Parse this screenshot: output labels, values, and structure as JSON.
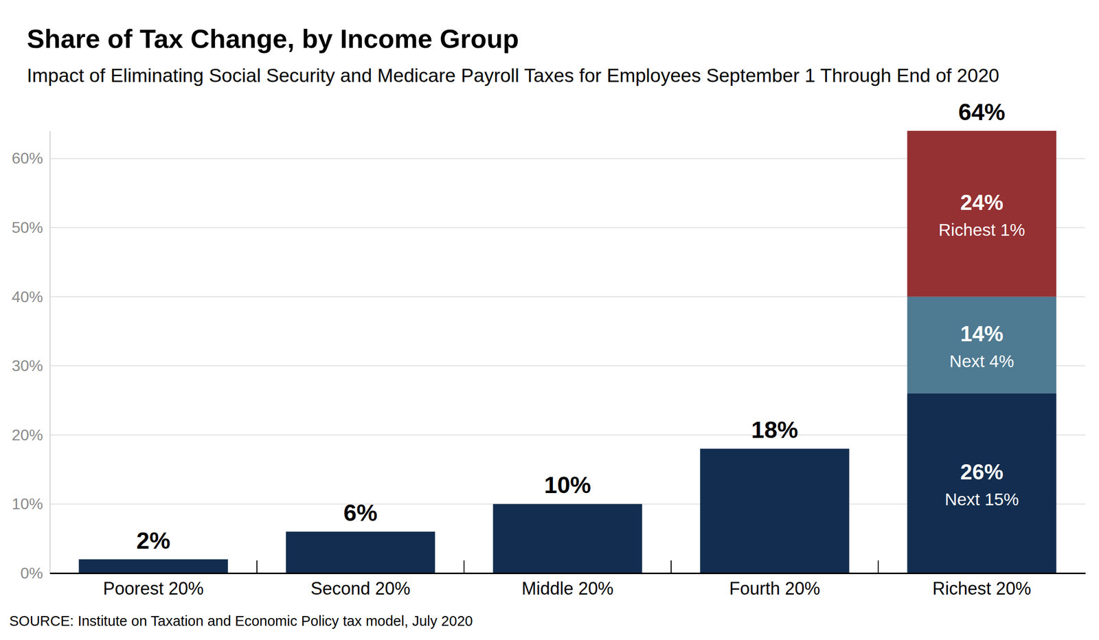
{
  "chart_data": {
    "type": "bar",
    "stacked": true,
    "data_labels": true,
    "grid": true,
    "title": "Share of Tax Change, by Income Group",
    "subtitle": "Impact of Eliminating Social Security and Medicare Payroll Taxes for Employees September 1 Through End of 2020",
    "source": "SOURCE: Institute on Taxation and Economic Policy tax model, July 2020",
    "categories": [
      "Poorest 20%",
      "Second 20%",
      "Middle 20%",
      "Fourth 20%",
      "Richest 20%"
    ],
    "series": [
      {
        "name": "Next 15%",
        "color": "#122d4f",
        "values": [
          2,
          6,
          10,
          18,
          26
        ],
        "value_labels": [
          "2%",
          "6%",
          "10%",
          "18%",
          "26%"
        ]
      },
      {
        "name": "Next 4%",
        "color": "#4e7a92",
        "values": [
          null,
          null,
          null,
          null,
          14
        ],
        "value_labels": [
          null,
          null,
          null,
          null,
          "14%"
        ]
      },
      {
        "name": "Richest 1%",
        "color": "#953033",
        "values": [
          null,
          null,
          null,
          null,
          24
        ],
        "value_labels": [
          null,
          null,
          null,
          null,
          "24%"
        ]
      }
    ],
    "totals": [
      null,
      null,
      null,
      null,
      64
    ],
    "total_labels": [
      null,
      null,
      null,
      null,
      "64%"
    ],
    "ylim": [
      0,
      64
    ],
    "yticks": [
      {
        "value": 0,
        "label": "0%"
      },
      {
        "value": 10,
        "label": "10%"
      },
      {
        "value": 20,
        "label": "20%"
      },
      {
        "value": 30,
        "label": "30%"
      },
      {
        "value": 40,
        "label": "40%"
      },
      {
        "value": 50,
        "label": "50%"
      },
      {
        "value": 60,
        "label": "60%"
      }
    ]
  }
}
